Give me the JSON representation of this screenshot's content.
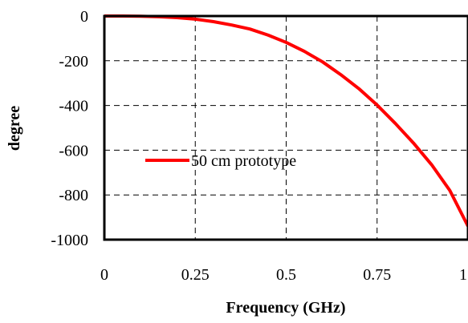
{
  "chart_data": {
    "type": "line",
    "title": "",
    "xlabel": "Frequency (GHz)",
    "ylabel": "degree",
    "xlim": [
      0,
      1
    ],
    "ylim": [
      -1000,
      0
    ],
    "x_ticks": [
      "0",
      "0.25",
      "0.5",
      "0.75",
      "1"
    ],
    "y_ticks": [
      "0",
      "-200",
      "-400",
      "-600",
      "-800",
      "-1000"
    ],
    "grid": true,
    "legend_position": "center-left",
    "series": [
      {
        "name": "50 cm prototype",
        "color": "#ff0000",
        "x": [
          0,
          0.05,
          0.1,
          0.15,
          0.2,
          0.25,
          0.3,
          0.35,
          0.4,
          0.45,
          0.5,
          0.55,
          0.6,
          0.65,
          0.7,
          0.75,
          0.8,
          0.85,
          0.9,
          0.95,
          1.0
        ],
        "y": [
          0,
          -0.2,
          -1,
          -3,
          -7,
          -14,
          -25,
          -40,
          -58,
          -85,
          -118,
          -158,
          -205,
          -262,
          -325,
          -398,
          -480,
          -568,
          -665,
          -780,
          -940
        ]
      }
    ]
  }
}
